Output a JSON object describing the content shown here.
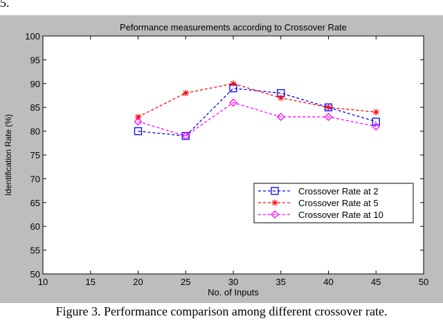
{
  "page": {
    "top_fragment": "5.",
    "caption": "Figure 3.    Performance comparison among different crossover rate."
  },
  "chart_data": {
    "type": "line",
    "title": "Peformance measurements according to Crossover Rate",
    "xlabel": "No. of Inputs",
    "ylabel": "Identification Rate (%)",
    "xlim": [
      10,
      50
    ],
    "ylim": [
      50,
      100
    ],
    "xticks": [
      10,
      15,
      20,
      25,
      30,
      35,
      40,
      45,
      50
    ],
    "yticks": [
      50,
      55,
      60,
      65,
      70,
      75,
      80,
      85,
      90,
      95,
      100
    ],
    "grid": false,
    "legend_position": "lower-right",
    "x": [
      20,
      25,
      30,
      35,
      40,
      45
    ],
    "series": [
      {
        "name": "Crossover Rate at 2",
        "values": [
          80,
          79,
          89,
          88,
          85,
          82
        ],
        "color": "#0000ff",
        "marker": "square"
      },
      {
        "name": "Crossover Rate at 5",
        "values": [
          83,
          88,
          90,
          87,
          85,
          84
        ],
        "color": "#ff0000",
        "marker": "star"
      },
      {
        "name": "Crossover Rate at 10",
        "values": [
          82,
          79,
          86,
          83,
          83,
          81
        ],
        "color": "#ff00ff",
        "marker": "diamond"
      }
    ]
  }
}
